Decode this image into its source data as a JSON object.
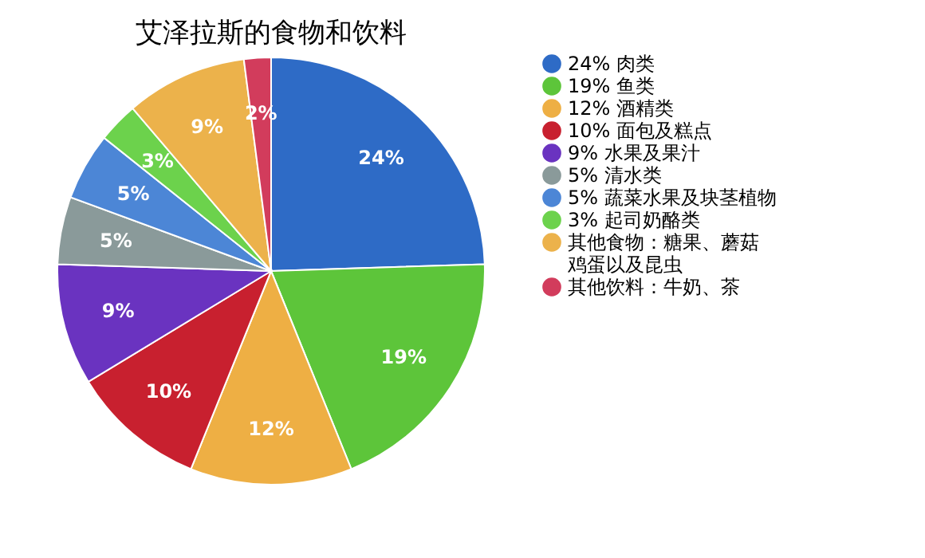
{
  "chart_data": {
    "type": "pie",
    "title": "艾泽拉斯的食物和饮料",
    "categories": [
      "24% 肉类",
      "19% 鱼类",
      "12% 酒精类",
      "10% 面包及糕点",
      "9%  水果及果汁",
      "5%  清水类",
      "5%  蔬菜水果及块茎植物",
      "3%  起司奶酪类",
      "其他食物：糖果、蘑菇鸡蛋以及昆虫",
      "其他饮料：牛奶、茶"
    ],
    "values": [
      24,
      19,
      12,
      10,
      9,
      5,
      5,
      3,
      9,
      2
    ],
    "colors": [
      "#2e6bc6",
      "#5dc53a",
      "#eeaf44",
      "#c8202f",
      "#6a33c0",
      "#8a9a9a",
      "#4c86d6",
      "#6cd24c",
      "#ecb24b",
      "#d23c5c"
    ],
    "value_labels": [
      "24%",
      "19%",
      "12%",
      "10%",
      "9%",
      "5%",
      "5%",
      "3%",
      "9%",
      "2%"
    ],
    "legend": "right"
  }
}
